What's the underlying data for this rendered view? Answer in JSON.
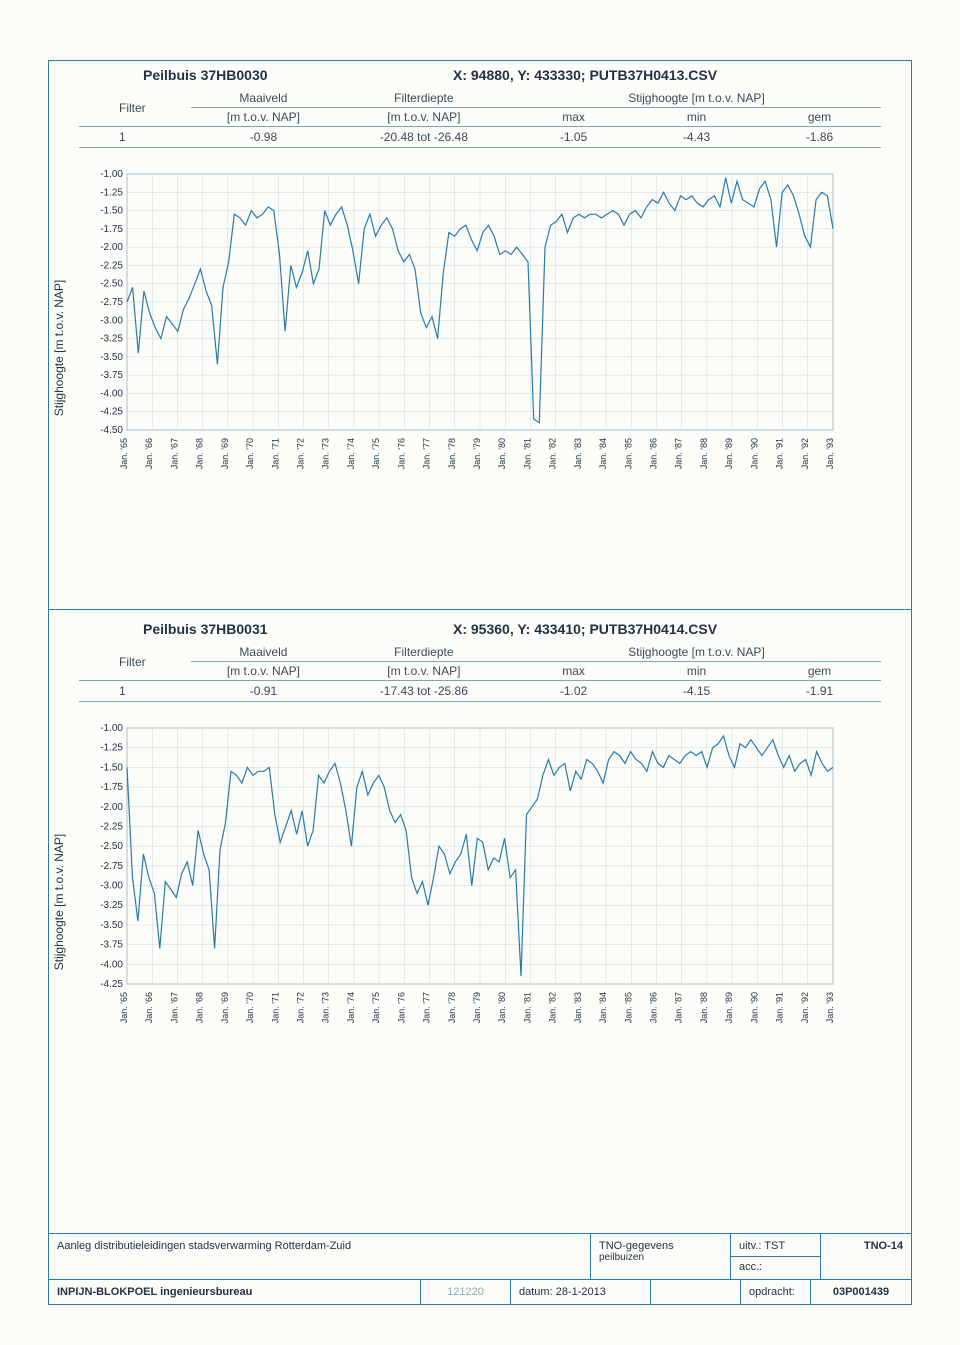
{
  "panels": [
    {
      "title": "Peilbuis 37HB0030",
      "meta": "X: 94880, Y: 433330; PUTB37H0413.CSV",
      "columns": {
        "filter": "Filter",
        "maaiveld": "Maaiveld",
        "maaiveld_unit": "[m t.o.v. NAP]",
        "filterdiepte": "Filterdiepte",
        "filterdiepte_unit": "[m t.o.v. NAP]",
        "stijg": "Stijghoogte [m t.o.v. NAP]",
        "max": "max",
        "min": "min",
        "gem": "gem"
      },
      "row": {
        "filter": "1",
        "maaiveld": "-0.98",
        "filterdiepte": "-20.48 tot -26.48",
        "max": "-1.05",
        "min": "-4.43",
        "gem": "-1.86"
      },
      "chart": {
        "ylabel": "Stijghoogte [m t.o.v. NAP]",
        "ylim": [
          -4.5,
          -1.0
        ],
        "ytick_step": 0.25,
        "yticks": [
          "-1.00",
          "-1.25",
          "-1.50",
          "-1.75",
          "-2.00",
          "-2.25",
          "-2.50",
          "-2.75",
          "-3.00",
          "-3.25",
          "-3.50",
          "-3.75",
          "-4.00",
          "-4.25",
          "-4.50"
        ],
        "xlabels": [
          "Jan. '65",
          "Jan. '66",
          "Jan. '67",
          "Jan. '68",
          "Jan. '69",
          "Jan. '70",
          "Jan. '71",
          "Jan. '72",
          "Jan. '73",
          "Jan. '74",
          "Jan. '75",
          "Jan. '76",
          "Jan. '77",
          "Jan. '78",
          "Jan. '79",
          "Jan. '80",
          "Jan. '81",
          "Jan. '82",
          "Jan. '83",
          "Jan. '84",
          "Jan. '85",
          "Jan. '86",
          "Jan. '87",
          "Jan. '88",
          "Jan. '89",
          "Jan. '90",
          "Jan. '91",
          "Jan. '92",
          "Jan. '93"
        ],
        "line_color": "#2a7aa8",
        "bg": "#fcfdf9",
        "series": [
          -2.75,
          -2.55,
          -3.45,
          -2.6,
          -2.9,
          -3.1,
          -3.25,
          -2.95,
          -3.05,
          -3.15,
          -2.85,
          -2.7,
          -2.5,
          -2.3,
          -2.6,
          -2.8,
          -3.6,
          -2.55,
          -2.2,
          -1.55,
          -1.6,
          -1.7,
          -1.5,
          -1.6,
          -1.55,
          -1.45,
          -1.5,
          -2.1,
          -3.15,
          -2.25,
          -2.55,
          -2.35,
          -2.05,
          -2.5,
          -2.3,
          -1.5,
          -1.7,
          -1.55,
          -1.45,
          -1.7,
          -2.05,
          -2.5,
          -1.75,
          -1.55,
          -1.85,
          -1.7,
          -1.6,
          -1.75,
          -2.05,
          -2.2,
          -2.1,
          -2.3,
          -2.9,
          -3.1,
          -2.95,
          -3.25,
          -2.35,
          -1.8,
          -1.85,
          -1.75,
          -1.7,
          -1.9,
          -2.05,
          -1.8,
          -1.7,
          -1.85,
          -2.1,
          -2.05,
          -2.1,
          -2.0,
          -2.1,
          -2.2,
          -4.35,
          -4.4,
          -2.0,
          -1.7,
          -1.65,
          -1.55,
          -1.8,
          -1.6,
          -1.55,
          -1.6,
          -1.55,
          -1.55,
          -1.6,
          -1.55,
          -1.5,
          -1.55,
          -1.7,
          -1.55,
          -1.5,
          -1.6,
          -1.45,
          -1.35,
          -1.4,
          -1.25,
          -1.4,
          -1.5,
          -1.3,
          -1.35,
          -1.3,
          -1.4,
          -1.45,
          -1.35,
          -1.3,
          -1.45,
          -1.05,
          -1.4,
          -1.1,
          -1.35,
          -1.4,
          -1.45,
          -1.2,
          -1.1,
          -1.35,
          -2.0,
          -1.25,
          -1.15,
          -1.3,
          -1.55,
          -1.85,
          -2.0,
          -1.35,
          -1.25,
          -1.3,
          -1.75
        ]
      }
    },
    {
      "title": "Peilbuis 37HB0031",
      "meta": "X: 95360, Y: 433410; PUTB37H0414.CSV",
      "columns": {
        "filter": "Filter",
        "maaiveld": "Maaiveld",
        "maaiveld_unit": "[m t.o.v. NAP]",
        "filterdiepte": "Filterdiepte",
        "filterdiepte_unit": "[m t.o.v. NAP]",
        "stijg": "Stijghoogte [m t.o.v. NAP]",
        "max": "max",
        "min": "min",
        "gem": "gem"
      },
      "row": {
        "filter": "1",
        "maaiveld": "-0.91",
        "filterdiepte": "-17.43 tot -25.86",
        "max": "-1.02",
        "min": "-4.15",
        "gem": "-1.91"
      },
      "chart": {
        "ylabel": "Stijghoogte [m t.o.v. NAP]",
        "ylim": [
          -4.25,
          -1.0
        ],
        "ytick_step": 0.25,
        "yticks": [
          "-1.00",
          "-1.25",
          "-1.50",
          "-1.75",
          "-2.00",
          "-2.25",
          "-2.50",
          "-2.75",
          "-3.00",
          "-3.25",
          "-3.50",
          "-3.75",
          "-4.00",
          "-4.25"
        ],
        "xlabels": [
          "Jan. '65",
          "Jan. '66",
          "Jan. '67",
          "Jan. '68",
          "Jan. '69",
          "Jan. '70",
          "Jan. '71",
          "Jan. '72",
          "Jan. '73",
          "Jan. '74",
          "Jan. '75",
          "Jan. '76",
          "Jan. '77",
          "Jan. '78",
          "Jan. '79",
          "Jan. '80",
          "Jan. '81",
          "Jan. '82",
          "Jan. '83",
          "Jan. '84",
          "Jan. '85",
          "Jan. '86",
          "Jan. '87",
          "Jan. '88",
          "Jan. '89",
          "Jan. '90",
          "Jan. '91",
          "Jan. '92",
          "Jan. '93"
        ],
        "line_color": "#2a7aa8",
        "bg": "#fcfdf9",
        "series": [
          -1.5,
          -2.9,
          -3.45,
          -2.6,
          -2.9,
          -3.1,
          -3.8,
          -2.95,
          -3.05,
          -3.15,
          -2.85,
          -2.7,
          -3.0,
          -2.3,
          -2.6,
          -2.8,
          -3.8,
          -2.55,
          -2.2,
          -1.55,
          -1.6,
          -1.7,
          -1.5,
          -1.6,
          -1.55,
          -1.55,
          -1.5,
          -2.1,
          -2.45,
          -2.25,
          -2.05,
          -2.35,
          -2.05,
          -2.5,
          -2.3,
          -1.6,
          -1.7,
          -1.55,
          -1.45,
          -1.7,
          -2.05,
          -2.5,
          -1.75,
          -1.55,
          -1.85,
          -1.7,
          -1.6,
          -1.75,
          -2.05,
          -2.2,
          -2.1,
          -2.3,
          -2.9,
          -3.1,
          -2.95,
          -3.25,
          -2.9,
          -2.5,
          -2.6,
          -2.85,
          -2.7,
          -2.6,
          -2.35,
          -3.0,
          -2.4,
          -2.45,
          -2.8,
          -2.65,
          -2.7,
          -2.4,
          -2.9,
          -2.8,
          -4.15,
          -2.1,
          -2.0,
          -1.9,
          -1.6,
          -1.4,
          -1.6,
          -1.5,
          -1.45,
          -1.8,
          -1.55,
          -1.65,
          -1.4,
          -1.45,
          -1.55,
          -1.7,
          -1.4,
          -1.3,
          -1.35,
          -1.45,
          -1.3,
          -1.4,
          -1.45,
          -1.55,
          -1.3,
          -1.45,
          -1.5,
          -1.35,
          -1.4,
          -1.45,
          -1.35,
          -1.3,
          -1.35,
          -1.3,
          -1.5,
          -1.25,
          -1.2,
          -1.1,
          -1.35,
          -1.5,
          -1.2,
          -1.25,
          -1.15,
          -1.25,
          -1.35,
          -1.25,
          -1.15,
          -1.35,
          -1.5,
          -1.35,
          -1.55,
          -1.45,
          -1.4,
          -1.6,
          -1.3,
          -1.45,
          -1.55,
          -1.5
        ]
      }
    }
  ],
  "footer": {
    "project": "Aanleg distributieleidingen stadsverwarming Rotterdam-Zuid",
    "tno_title": "TNO-gegevens",
    "tno_sub": "peilbuizen",
    "uitv_label": "uitv.:",
    "uitv_val": "TST",
    "acc_label": "acc.:",
    "code": "TNO-14",
    "company": "INPIJN-BLOKPOEL ingenieursbureau",
    "num": "121220",
    "date_label": "datum:",
    "date_val": "28-1-2013",
    "opd_label": "opdracht:",
    "opd_val": "03P001439"
  }
}
